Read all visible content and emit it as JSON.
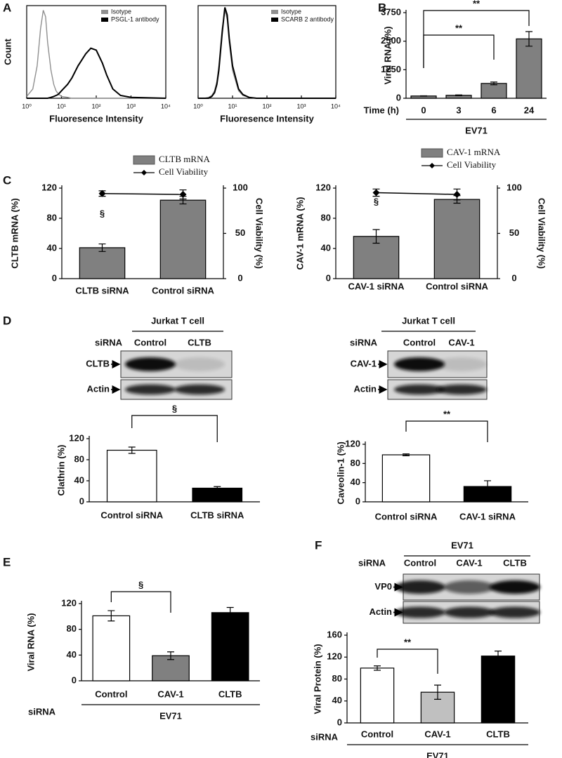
{
  "panel_labels": [
    "A",
    "B",
    "C",
    "D",
    "E",
    "F"
  ],
  "chart_data": [
    {
      "type": "line",
      "xlabel": "Fluoresence Intensity",
      "ylabel": "Count",
      "xscale": "log",
      "xlim": [
        1,
        10000
      ],
      "ylim": [
        0,
        100
      ],
      "xticks": [
        {
          "value": 1,
          "label": "10⁰"
        },
        {
          "value": 10,
          "label": "10¹"
        },
        {
          "value": 100,
          "label": "10²"
        },
        {
          "value": 1000,
          "label": "10³"
        },
        {
          "value": 10000,
          "label": "10⁴"
        }
      ],
      "x": [
        1,
        1.5,
        2,
        2.5,
        3,
        3.5,
        4,
        5,
        6,
        7,
        8,
        10,
        15,
        20,
        30,
        50,
        70,
        100,
        150,
        200,
        300,
        500,
        1000,
        10000
      ],
      "series": [
        {
          "name": "Isotype",
          "color": "#909090",
          "values": [
            2,
            10,
            35,
            75,
            95,
            88,
            60,
            30,
            15,
            8,
            5,
            2,
            1,
            0,
            0,
            0,
            0,
            0,
            0,
            0,
            0,
            0,
            0,
            0
          ]
        },
        {
          "name": "PSGL-1 antibody",
          "color": "#000000",
          "values": [
            0,
            0,
            0,
            0,
            0,
            0,
            0,
            1,
            2,
            3,
            4,
            8,
            15,
            22,
            35,
            48,
            54,
            52,
            38,
            25,
            10,
            3,
            1,
            0
          ]
        }
      ]
    },
    {
      "type": "line",
      "xlabel": "Fluoresence Intensity",
      "xscale": "log",
      "xlim": [
        1,
        10000
      ],
      "ylim": [
        0,
        100
      ],
      "xticks": [
        {
          "value": 1,
          "label": "10⁰"
        },
        {
          "value": 10,
          "label": "10¹"
        },
        {
          "value": 100,
          "label": "10²"
        },
        {
          "value": 1000,
          "label": "10³"
        },
        {
          "value": 10000,
          "label": "10⁴"
        }
      ],
      "x": [
        1,
        1.5,
        2,
        2.5,
        3,
        3.5,
        4,
        5,
        6,
        7,
        8,
        10,
        15,
        20,
        30,
        50,
        70,
        100,
        150,
        200,
        300,
        500,
        1000,
        10000
      ],
      "series": [
        {
          "name": "Isotype",
          "color": "#909090",
          "values": [
            0,
            0,
            1,
            3,
            8,
            18,
            35,
            75,
            95,
            85,
            60,
            30,
            8,
            3,
            1,
            0,
            0,
            0,
            0,
            0,
            0,
            0,
            0,
            0
          ]
        },
        {
          "name": "SCARB 2 antibody",
          "color": "#000000",
          "values": [
            0,
            0,
            0,
            2,
            6,
            15,
            30,
            70,
            98,
            90,
            65,
            35,
            10,
            4,
            1,
            0,
            0,
            0,
            0,
            0,
            0,
            0,
            0,
            0
          ]
        }
      ]
    },
    {
      "type": "bar",
      "ylabel": "Viral RNA (%)",
      "ylim": [
        0,
        3750
      ],
      "yticks": [
        0,
        1250,
        2500,
        3750
      ],
      "categories": [
        "0",
        "3",
        "6",
        "24"
      ],
      "category_row_label": "Time (h)",
      "group_label": "EV71",
      "color": "#808080",
      "values": [
        100,
        130,
        650,
        2600
      ],
      "errors": [
        10,
        15,
        60,
        320
      ],
      "annotations": [
        "**",
        "**"
      ]
    },
    {
      "type": "bar",
      "ylabel": "CLTB mRNA (%)",
      "y2label": "Cell Viability (%)",
      "ylim": [
        0,
        120
      ],
      "yticks": [
        0,
        40,
        80,
        120
      ],
      "y2lim": [
        0,
        100
      ],
      "y2ticks": [
        0,
        50,
        100
      ],
      "categories": [
        "CLTB siRNA",
        "Control siRNA"
      ],
      "series": [
        {
          "name": "CLTB mRNA",
          "color": "#808080",
          "values": [
            41,
            104
          ],
          "errors": [
            5,
            5
          ]
        },
        {
          "name": "Cell Viability",
          "color": "#000000",
          "axis": "y2",
          "values": [
            94,
            93
          ],
          "errors": [
            3,
            5
          ]
        }
      ],
      "annotations": [
        "§"
      ]
    },
    {
      "type": "bar",
      "ylabel": "CAV-1 mRNA (%)",
      "y2label": "Cell Viability (%)",
      "ylim": [
        0,
        120
      ],
      "yticks": [
        0,
        40,
        80,
        120
      ],
      "y2lim": [
        0,
        100
      ],
      "y2ticks": [
        0,
        50,
        100
      ],
      "categories": [
        "CAV-1 siRNA",
        "Control siRNA"
      ],
      "series": [
        {
          "name": "CAV-1 mRNA",
          "color": "#808080",
          "values": [
            56,
            105
          ],
          "errors": [
            9,
            5
          ]
        },
        {
          "name": "Cell Viability",
          "color": "#000000",
          "axis": "y2",
          "values": [
            95,
            93
          ],
          "errors": [
            4,
            6
          ]
        }
      ],
      "annotations": [
        "§"
      ]
    },
    {
      "type": "bar",
      "ylabel": "Clathrin (%)",
      "ylim": [
        0,
        120
      ],
      "yticks": [
        0,
        40,
        80,
        120
      ],
      "categories": [
        "Control siRNA",
        "CLTB siRNA"
      ],
      "colors": [
        "#ffffff",
        "#000000"
      ],
      "values": [
        98,
        26
      ],
      "errors": [
        6,
        3
      ],
      "annotations": [
        "§"
      ]
    },
    {
      "type": "bar",
      "ylabel": "Caveolin-1 (%)",
      "ylim": [
        0,
        120
      ],
      "yticks": [
        0,
        40,
        80,
        120
      ],
      "categories": [
        "Control siRNA",
        "CAV-1 siRNA"
      ],
      "colors": [
        "#ffffff",
        "#000000"
      ],
      "values": [
        98,
        32
      ],
      "errors": [
        2,
        12
      ],
      "annotations": [
        "**"
      ]
    },
    {
      "type": "bar",
      "ylabel": "Viral RNA (%)",
      "ylim": [
        0,
        120
      ],
      "yticks": [
        0,
        40,
        80,
        120
      ],
      "categories": [
        "Control",
        "CAV-1",
        "CLTB"
      ],
      "category_row_label": "siRNA",
      "group_label": "EV71",
      "colors": [
        "#ffffff",
        "#808080",
        "#000000"
      ],
      "values": [
        101,
        39,
        106
      ],
      "errors": [
        8,
        6,
        8
      ],
      "annotations": [
        "§"
      ]
    },
    {
      "type": "bar",
      "ylabel": "Viral Protein (%)",
      "ylim": [
        0,
        160
      ],
      "yticks": [
        0,
        40,
        80,
        120,
        160
      ],
      "categories": [
        "Control",
        "CAV-1",
        "CLTB"
      ],
      "category_row_label": "siRNA",
      "group_label": "EV71",
      "colors": [
        "#ffffff",
        "#c0c0c0",
        "#000000"
      ],
      "values": [
        100,
        56,
        122
      ],
      "errors": [
        4,
        13,
        9
      ],
      "annotations": [
        "**"
      ]
    }
  ],
  "blots": [
    {
      "title": "Jurkat T cell",
      "header_label": "siRNA",
      "lanes": [
        "Control",
        "CLTB"
      ],
      "rows": [
        "CLTB",
        "Actin"
      ]
    },
    {
      "title": "Jurkat T cell",
      "header_label": "siRNA",
      "lanes": [
        "Control",
        "CAV-1"
      ],
      "rows": [
        "CAV-1",
        "Actin"
      ]
    },
    {
      "title": "EV71",
      "header_label": "siRNA",
      "lanes": [
        "Control",
        "CAV-1",
        "CLTB"
      ],
      "rows": [
        "VP0",
        "Actin"
      ]
    }
  ]
}
